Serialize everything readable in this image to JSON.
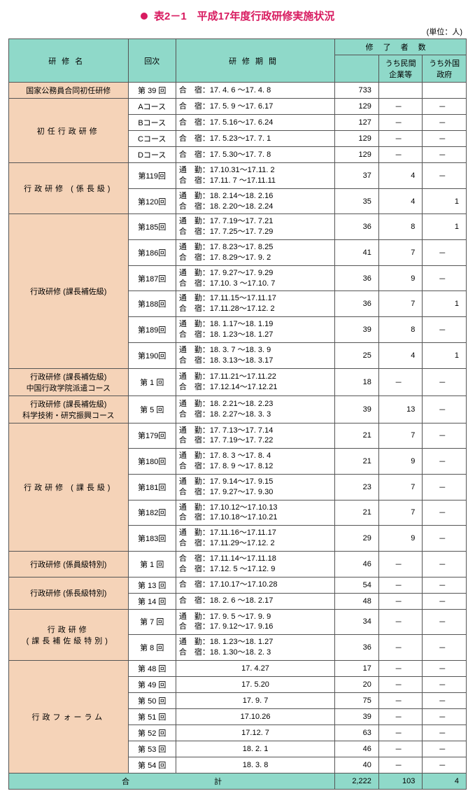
{
  "title": "表2－1　平成17年度行政研修実施状況",
  "unit": "(単位：人)",
  "headers": {
    "name": "研修名",
    "session": "回次",
    "period": "研修期間",
    "completed": "修了者数",
    "private": "うち民間\n企業等",
    "foreign": "うち外国\n政府"
  },
  "groups": [
    {
      "name": "国家公務員合同初任研修",
      "rows": [
        {
          "session": "第 39 回",
          "period": "合　宿：17. 4. 6 ～17. 4. 8",
          "completed": "733",
          "private": "",
          "foreign": ""
        }
      ]
    },
    {
      "name": "初任行政研修",
      "nameClass": "spaced",
      "rows": [
        {
          "session": "Aコース",
          "period": "合　宿：17. 5.  9 ～17. 6.17",
          "completed": "129",
          "private": "－",
          "foreign": "－"
        },
        {
          "session": "Bコース",
          "period": "合　宿：17. 5.16～17. 6.24",
          "completed": "127",
          "private": "－",
          "foreign": "－"
        },
        {
          "session": "Cコース",
          "period": "合　宿：17. 5.23～17. 7.  1",
          "completed": "129",
          "private": "－",
          "foreign": "－"
        },
        {
          "session": "Dコース",
          "period": "合　宿：17. 5.30～17. 7.  8",
          "completed": "129",
          "private": "－",
          "foreign": "－"
        }
      ]
    },
    {
      "name": "行政研修 (係長級)",
      "nameClass": "spaced",
      "rows": [
        {
          "session": "第119回",
          "period": "通　勤：17.10.31～17.11.  2\n合　宿：17.11.  7 ～17.11.11",
          "completed": "37",
          "private": "4",
          "foreign": "－"
        },
        {
          "session": "第120回",
          "period": "通　勤：18. 2.14～18. 2.16\n合　宿：18. 2.20～18. 2.24",
          "completed": "35",
          "private": "4",
          "foreign": "1"
        }
      ]
    },
    {
      "name": "行政研修 (課長補佐級)",
      "rows": [
        {
          "session": "第185回",
          "period": "通　勤：17. 7.19～17. 7.21\n合　宿：17. 7.25～17. 7.29",
          "completed": "36",
          "private": "8",
          "foreign": "1"
        },
        {
          "session": "第186回",
          "period": "通　勤：17. 8.23～17. 8.25\n合　宿：17. 8.29～17. 9.  2",
          "completed": "41",
          "private": "7",
          "foreign": "－"
        },
        {
          "session": "第187回",
          "period": "通　勤：17. 9.27～17. 9.29\n合　宿：17.10.  3 ～17.10.  7",
          "completed": "36",
          "private": "9",
          "foreign": "－"
        },
        {
          "session": "第188回",
          "period": "通　勤：17.11.15～17.11.17\n合　宿：17.11.28～17.12.  2",
          "completed": "36",
          "private": "7",
          "foreign": "1"
        },
        {
          "session": "第189回",
          "period": "通　勤：18. 1.17～18. 1.19\n合　宿：18. 1.23～18. 1.27",
          "completed": "39",
          "private": "8",
          "foreign": "－"
        },
        {
          "session": "第190回",
          "period": "通　勤：18. 3.  7 ～18. 3.  9\n合　宿：18. 3.13～18. 3.17",
          "completed": "25",
          "private": "4",
          "foreign": "1"
        }
      ]
    },
    {
      "name": "行政研修 (課長補佐級)\n中国行政学院派遣コース",
      "rows": [
        {
          "session": "第 1 回",
          "period": "通　勤：17.11.21～17.11.22\n合　宿：17.12.14～17.12.21",
          "completed": "18",
          "private": "－",
          "foreign": "－"
        }
      ]
    },
    {
      "name": "行政研修 (課長補佐級)\n科学技術・研究振興コース",
      "rows": [
        {
          "session": "第 5 回",
          "period": "通　勤：18. 2.21～18. 2.23\n合　宿：18. 2.27～18. 3.  3",
          "completed": "39",
          "private": "13",
          "foreign": "－"
        }
      ]
    },
    {
      "name": "行政研修 (課長級)",
      "nameClass": "spaced",
      "rows": [
        {
          "session": "第179回",
          "period": "通　勤：17. 7.13～17. 7.14\n合　宿：17. 7.19～17. 7.22",
          "completed": "21",
          "private": "7",
          "foreign": "－"
        },
        {
          "session": "第180回",
          "period": "通　勤：17. 8.  3 ～17. 8.  4\n合　宿：17. 8.  9 ～17. 8.12",
          "completed": "21",
          "private": "9",
          "foreign": "－"
        },
        {
          "session": "第181回",
          "period": "通　勤：17. 9.14～17. 9.15\n合　宿：17. 9.27～17. 9.30",
          "completed": "23",
          "private": "7",
          "foreign": "－"
        },
        {
          "session": "第182回",
          "period": "通　勤：17.10.12～17.10.13\n合　宿：17.10.18～17.10.21",
          "completed": "21",
          "private": "7",
          "foreign": "－"
        },
        {
          "session": "第183回",
          "period": "通　勤：17.11.16～17.11.17\n合　宿：17.11.29～17.12.  2",
          "completed": "29",
          "private": "9",
          "foreign": "－"
        }
      ]
    },
    {
      "name": "行政研修 (係員級特別)",
      "rows": [
        {
          "session": "第 1 回",
          "period": "合　宿：17.11.14～17.11.18\n合　宿：17.12.  5 ～17.12.  9",
          "completed": "46",
          "private": "－",
          "foreign": "－"
        }
      ]
    },
    {
      "name": "行政研修 (係長級特別)",
      "rows": [
        {
          "session": "第 13 回",
          "period": "合　宿：17.10.17～17.10.28",
          "completed": "54",
          "private": "－",
          "foreign": "－"
        },
        {
          "session": "第 14 回",
          "period": "合　宿：18. 2.  6 ～18. 2.17",
          "completed": "48",
          "private": "－",
          "foreign": "－"
        }
      ]
    },
    {
      "name": "行政研修\n(課長補佐級特別)",
      "nameClass": "spaced",
      "rows": [
        {
          "session": "第 7 回",
          "period": "通　勤：17. 9.  5 ～17. 9.  9\n合　宿：17. 9.12～17. 9.16",
          "completed": "34",
          "private": "－",
          "foreign": "－"
        },
        {
          "session": "第 8 回",
          "period": "通　勤：18. 1.23～18. 1.27\n合　宿：18. 1.30～18. 2.  3",
          "completed": "36",
          "private": "－",
          "foreign": "－"
        }
      ]
    },
    {
      "name": "行政フォーラム",
      "nameClass": "spaced",
      "rows": [
        {
          "session": "第 48 回",
          "period": "17. 4.27",
          "periodCenter": true,
          "completed": "17",
          "private": "－",
          "foreign": "－"
        },
        {
          "session": "第 49 回",
          "period": "17. 5.20",
          "periodCenter": true,
          "completed": "20",
          "private": "－",
          "foreign": "－"
        },
        {
          "session": "第 50 回",
          "period": "17. 9. 7",
          "periodCenter": true,
          "completed": "75",
          "private": "－",
          "foreign": "－"
        },
        {
          "session": "第 51 回",
          "period": "17.10.26",
          "periodCenter": true,
          "completed": "39",
          "private": "－",
          "foreign": "－"
        },
        {
          "session": "第 52 回",
          "period": "17.12. 7",
          "periodCenter": true,
          "completed": "63",
          "private": "－",
          "foreign": "－"
        },
        {
          "session": "第 53 回",
          "period": "18. 2. 1",
          "periodCenter": true,
          "completed": "46",
          "private": "－",
          "foreign": "－"
        },
        {
          "session": "第 54 回",
          "period": "18. 3. 8",
          "periodCenter": true,
          "completed": "40",
          "private": "－",
          "foreign": "－"
        }
      ]
    }
  ],
  "total": {
    "label": "合　　　　　　　　　　　計",
    "completed": "2,222",
    "private": "103",
    "foreign": "4"
  },
  "colors": {
    "header_bg": "#8fd9c9",
    "name_bg": "#f5d3b8",
    "accent": "#d81b60",
    "border": "#555555"
  }
}
